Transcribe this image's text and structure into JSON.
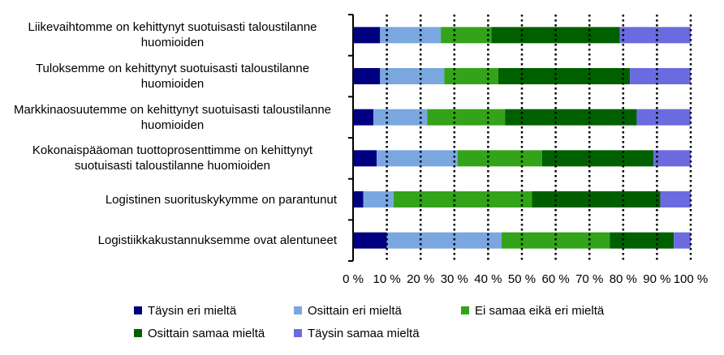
{
  "chart_data": {
    "type": "stacked-bar-horizontal",
    "categories": [
      "Liikevaihtomme on kehittynyt suotuisasti taloustilanne huomioiden",
      "Tuloksemme on kehittynyt suotuisasti taloustilanne huomioiden",
      "Markkinaosuutemme on kehittynyt suotuisasti taloustilanne huomioiden",
      "Kokonaispääoman tuottoprosenttimme on kehittynyt suotuisasti taloustilanne huomioiden",
      "Logistinen suorituskykymme on parantunut",
      "Logistiikkakustannuksemme ovat alentuneet"
    ],
    "series": [
      {
        "name": "Täysin eri mieltä",
        "color": "#000080",
        "values": [
          8,
          8,
          6,
          7,
          3,
          10
        ]
      },
      {
        "name": "Osittain eri mieltä",
        "color": "#7ba7e0",
        "values": [
          18,
          19,
          16,
          24,
          9,
          34
        ]
      },
      {
        "name": "Ei samaa eikä eri mieltä",
        "color": "#33a31a",
        "values": [
          15,
          16,
          23,
          25,
          41,
          32
        ]
      },
      {
        "name": "Osittain samaa mieltä",
        "color": "#006000",
        "values": [
          38,
          39,
          39,
          33,
          38,
          19
        ]
      },
      {
        "name": "Täysin samaa mieltä",
        "color": "#6b6be0",
        "values": [
          21,
          18,
          16,
          11,
          9,
          5
        ]
      }
    ],
    "xlim": [
      0,
      100
    ],
    "xticks": [
      {
        "value": 0,
        "label": "0 %"
      },
      {
        "value": 10,
        "label": "10 %"
      },
      {
        "value": 20,
        "label": "20 %"
      },
      {
        "value": 30,
        "label": "30 %"
      },
      {
        "value": 40,
        "label": "40 %"
      },
      {
        "value": 50,
        "label": "50 %"
      },
      {
        "value": 60,
        "label": "60 %"
      },
      {
        "value": 70,
        "label": "70 %"
      },
      {
        "value": 80,
        "label": "80 %"
      },
      {
        "value": 90,
        "label": "90 %"
      },
      {
        "value": 100,
        "label": "100 %"
      }
    ],
    "grid": true
  }
}
